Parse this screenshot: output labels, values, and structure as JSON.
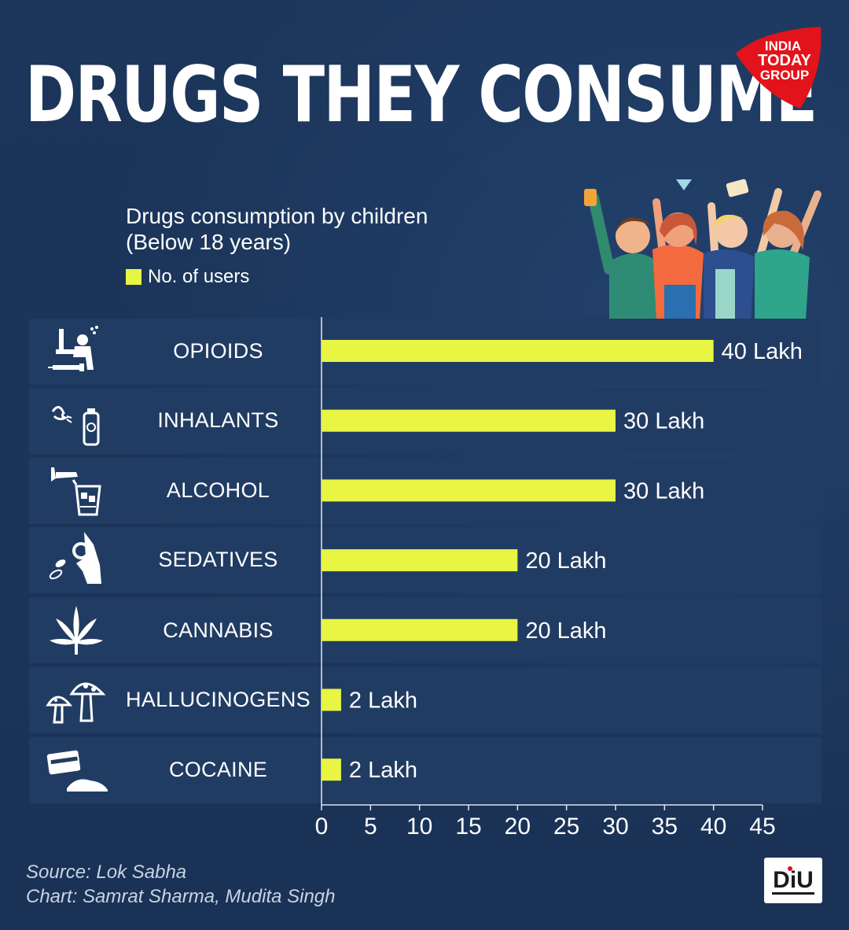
{
  "title": "DRUGS THEY CONSUME",
  "subtitle_line1": "Drugs consumption by children",
  "subtitle_line2": "(Below 18 years)",
  "legend_label": "No. of users",
  "brand_logo": "INDIA TODAY GROUP",
  "bar_color": "#e8f542",
  "background_color": "#1b3358",
  "footer": {
    "source": "Source: Lok Sabha",
    "chart": "Chart: Samrat Sharma, Mudita Singh",
    "badge": "DiU"
  },
  "chart_data": {
    "type": "bar",
    "orientation": "horizontal",
    "categories": [
      "OPIOIDS",
      "INHALANTS",
      "ALCOHOL",
      "SEDATIVES",
      "CANNABIS",
      "HALLUCINOGENS",
      "COCAINE"
    ],
    "values": [
      40,
      30,
      30,
      20,
      20,
      2,
      2
    ],
    "value_labels": [
      "40 Lakh",
      "30 Lakh",
      "30 Lakh",
      "20 Lakh",
      "20 Lakh",
      "2 Lakh",
      "2 Lakh"
    ],
    "xlim": [
      0,
      45
    ],
    "xticks": [
      0,
      5,
      10,
      15,
      20,
      25,
      30,
      35,
      40,
      45
    ],
    "icons": [
      "syringe-person-icon",
      "inhaler-spray-icon",
      "alcohol-glass-icon",
      "pills-hand-icon",
      "cannabis-leaf-icon",
      "mushroom-icon",
      "card-powder-icon"
    ],
    "grid": false,
    "legend_position": "top-left"
  }
}
